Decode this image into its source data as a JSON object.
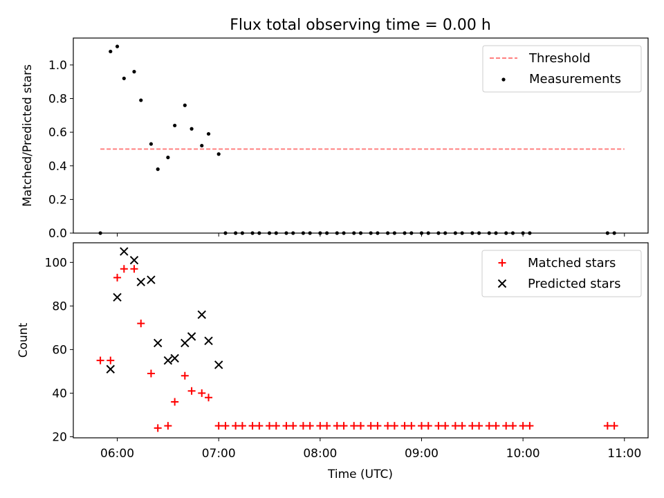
{
  "chart_data": [
    {
      "type": "scatter",
      "title": "Flux total observing time = 0.00 h",
      "xlabel": "",
      "ylabel": "Matched/Predicted stars",
      "xlim": [
        "05:34",
        "11:14"
      ],
      "ylim": [
        0,
        1.16
      ],
      "x_ticks": [
        "06:00",
        "07:00",
        "08:00",
        "09:00",
        "10:00",
        "11:00"
      ],
      "y_ticks": [
        "0.0",
        "0.2",
        "0.4",
        "0.6",
        "0.8",
        "1.0"
      ],
      "legend_position": "upper right",
      "threshold": {
        "name": "Threshold",
        "value": 0.5,
        "x_range": [
          "05:50",
          "11:00"
        ],
        "color": "#ff7f7f",
        "style": "dashed"
      },
      "series": [
        {
          "name": "Measurements",
          "marker": "dot",
          "color": "#000000",
          "x": [
            "05:50",
            "05:56",
            "06:00",
            "06:04",
            "06:10",
            "06:14",
            "06:20",
            "06:24",
            "06:30",
            "06:34",
            "06:40",
            "06:44",
            "06:50",
            "06:54",
            "07:00",
            "07:04",
            "07:10",
            "07:14",
            "07:20",
            "07:24",
            "07:30",
            "07:34",
            "07:40",
            "07:44",
            "07:50",
            "07:54",
            "08:00",
            "08:04",
            "08:10",
            "08:14",
            "08:20",
            "08:24",
            "08:30",
            "08:34",
            "08:40",
            "08:44",
            "08:50",
            "08:54",
            "09:00",
            "09:04",
            "09:10",
            "09:14",
            "09:20",
            "09:24",
            "09:30",
            "09:34",
            "09:40",
            "09:44",
            "09:50",
            "09:54",
            "10:00",
            "10:04",
            "10:50",
            "10:54"
          ],
          "y": [
            0,
            1.08,
            1.11,
            0.92,
            0.96,
            0.79,
            0.53,
            0.38,
            0.45,
            0.64,
            0.76,
            0.62,
            0.52,
            0.59,
            0.47,
            0,
            0,
            0,
            0,
            0,
            0,
            0,
            0,
            0,
            0,
            0,
            0,
            0,
            0,
            0,
            0,
            0,
            0,
            0,
            0,
            0,
            0,
            0,
            0,
            0,
            0,
            0,
            0,
            0,
            0,
            0,
            0,
            0,
            0,
            0,
            0,
            0,
            0,
            0
          ]
        }
      ]
    },
    {
      "type": "scatter",
      "title": "",
      "xlabel": "Time (UTC)",
      "ylabel": "Count",
      "xlim": [
        "05:34",
        "11:14"
      ],
      "ylim": [
        19.5,
        109
      ],
      "x_ticks": [
        "06:00",
        "07:00",
        "08:00",
        "09:00",
        "10:00",
        "11:00"
      ],
      "y_ticks": [
        "20",
        "40",
        "60",
        "80",
        "100"
      ],
      "legend_position": "upper right",
      "series": [
        {
          "name": "Matched stars",
          "marker": "plus",
          "color": "#ff0000",
          "x": [
            "05:50",
            "05:56",
            "06:00",
            "06:04",
            "06:10",
            "06:14",
            "06:20",
            "06:24",
            "06:30",
            "06:34",
            "06:40",
            "06:44",
            "06:50",
            "06:54",
            "07:00",
            "07:04",
            "07:10",
            "07:14",
            "07:20",
            "07:24",
            "07:30",
            "07:34",
            "07:40",
            "07:44",
            "07:50",
            "07:54",
            "08:00",
            "08:04",
            "08:10",
            "08:14",
            "08:20",
            "08:24",
            "08:30",
            "08:34",
            "08:40",
            "08:44",
            "08:50",
            "08:54",
            "09:00",
            "09:04",
            "09:10",
            "09:14",
            "09:20",
            "09:24",
            "09:30",
            "09:34",
            "09:40",
            "09:44",
            "09:50",
            "09:54",
            "10:00",
            "10:04",
            "10:50",
            "10:54"
          ],
          "y": [
            55,
            55,
            93,
            97,
            97,
            72,
            49,
            24,
            25,
            36,
            48,
            41,
            40,
            38,
            25,
            25,
            25,
            25,
            25,
            25,
            25,
            25,
            25,
            25,
            25,
            25,
            25,
            25,
            25,
            25,
            25,
            25,
            25,
            25,
            25,
            25,
            25,
            25,
            25,
            25,
            25,
            25,
            25,
            25,
            25,
            25,
            25,
            25,
            25,
            25,
            25,
            25,
            25,
            25
          ]
        },
        {
          "name": "Predicted stars",
          "marker": "x",
          "color": "#000000",
          "x": [
            "05:56",
            "06:00",
            "06:04",
            "06:10",
            "06:14",
            "06:20",
            "06:24",
            "06:30",
            "06:34",
            "06:40",
            "06:44",
            "06:50",
            "06:54",
            "07:00"
          ],
          "y": [
            51,
            84,
            105,
            101,
            91,
            92,
            63,
            55,
            56,
            63,
            66,
            76,
            64,
            53
          ]
        }
      ]
    }
  ]
}
